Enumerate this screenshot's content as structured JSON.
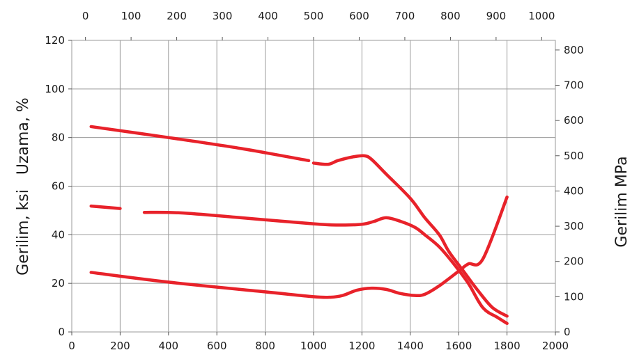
{
  "chart_data": {
    "type": "line",
    "title": "",
    "xlabel": "",
    "ylabel": "Gerilim, ksi   Uzama, %",
    "y2label": "Gerilim MPa",
    "xlim": [
      0,
      2000
    ],
    "ylim": [
      0,
      120
    ],
    "x_top_lim": [
      -30,
      1030
    ],
    "y_right_lim": [
      0,
      827.37
    ],
    "grid": true,
    "x_ticks": [
      0,
      200,
      400,
      600,
      800,
      1000,
      1200,
      1400,
      1600,
      1800,
      2000
    ],
    "y_ticks": [
      0,
      20,
      40,
      60,
      80,
      100,
      120
    ],
    "x_top_ticks": [
      0,
      100,
      200,
      300,
      400,
      500,
      600,
      700,
      800,
      900,
      1000
    ],
    "y_right_ticks": [
      0,
      100,
      200,
      300,
      400,
      500,
      600,
      700,
      800
    ],
    "series_color": "#e8222a",
    "series": [
      {
        "name": "",
        "segments": [
          [
            [
              80,
              84.5
            ],
            [
              400,
              80
            ],
            [
              700,
              75.5
            ],
            [
              980,
              70.5
            ]
          ],
          [
            [
              1000,
              69.5
            ],
            [
              1060,
              69
            ],
            [
              1100,
              70.5
            ],
            [
              1160,
              72
            ],
            [
              1210,
              72.5
            ],
            [
              1240,
              71
            ],
            [
              1300,
              65
            ],
            [
              1400,
              55
            ],
            [
              1460,
              47
            ],
            [
              1520,
              40
            ],
            [
              1560,
              33
            ],
            [
              1620,
              25
            ],
            [
              1680,
              17
            ],
            [
              1740,
              10
            ],
            [
              1800,
              6.5
            ]
          ]
        ]
      },
      {
        "name": "",
        "segments": [
          [
            [
              80,
              51.8
            ],
            [
              200,
              50.8
            ]
          ],
          [
            [
              300,
              49.2
            ],
            [
              450,
              49
            ],
            [
              700,
              47
            ],
            [
              1000,
              44.5
            ],
            [
              1100,
              44
            ],
            [
              1200,
              44.3
            ],
            [
              1250,
              45.5
            ],
            [
              1300,
              47
            ],
            [
              1360,
              45.5
            ],
            [
              1420,
              43
            ],
            [
              1460,
              40
            ],
            [
              1520,
              35
            ],
            [
              1580,
              28
            ],
            [
              1640,
              20
            ],
            [
              1700,
              10
            ],
            [
              1760,
              6
            ],
            [
              1800,
              3.5
            ]
          ]
        ]
      },
      {
        "name": "",
        "segments": [
          [
            [
              80,
              24.5
            ],
            [
              400,
              20.5
            ],
            [
              800,
              16.5
            ],
            [
              1000,
              14.5
            ],
            [
              1070,
              14.3
            ],
            [
              1120,
              15
            ],
            [
              1180,
              17.2
            ],
            [
              1240,
              18
            ],
            [
              1300,
              17.5
            ],
            [
              1360,
              15.8
            ],
            [
              1420,
              15
            ],
            [
              1460,
              15.5
            ],
            [
              1520,
              19
            ],
            [
              1600,
              25
            ],
            [
              1640,
              28
            ],
            [
              1700,
              30
            ],
            [
              1800,
              55.5
            ]
          ]
        ]
      }
    ]
  }
}
